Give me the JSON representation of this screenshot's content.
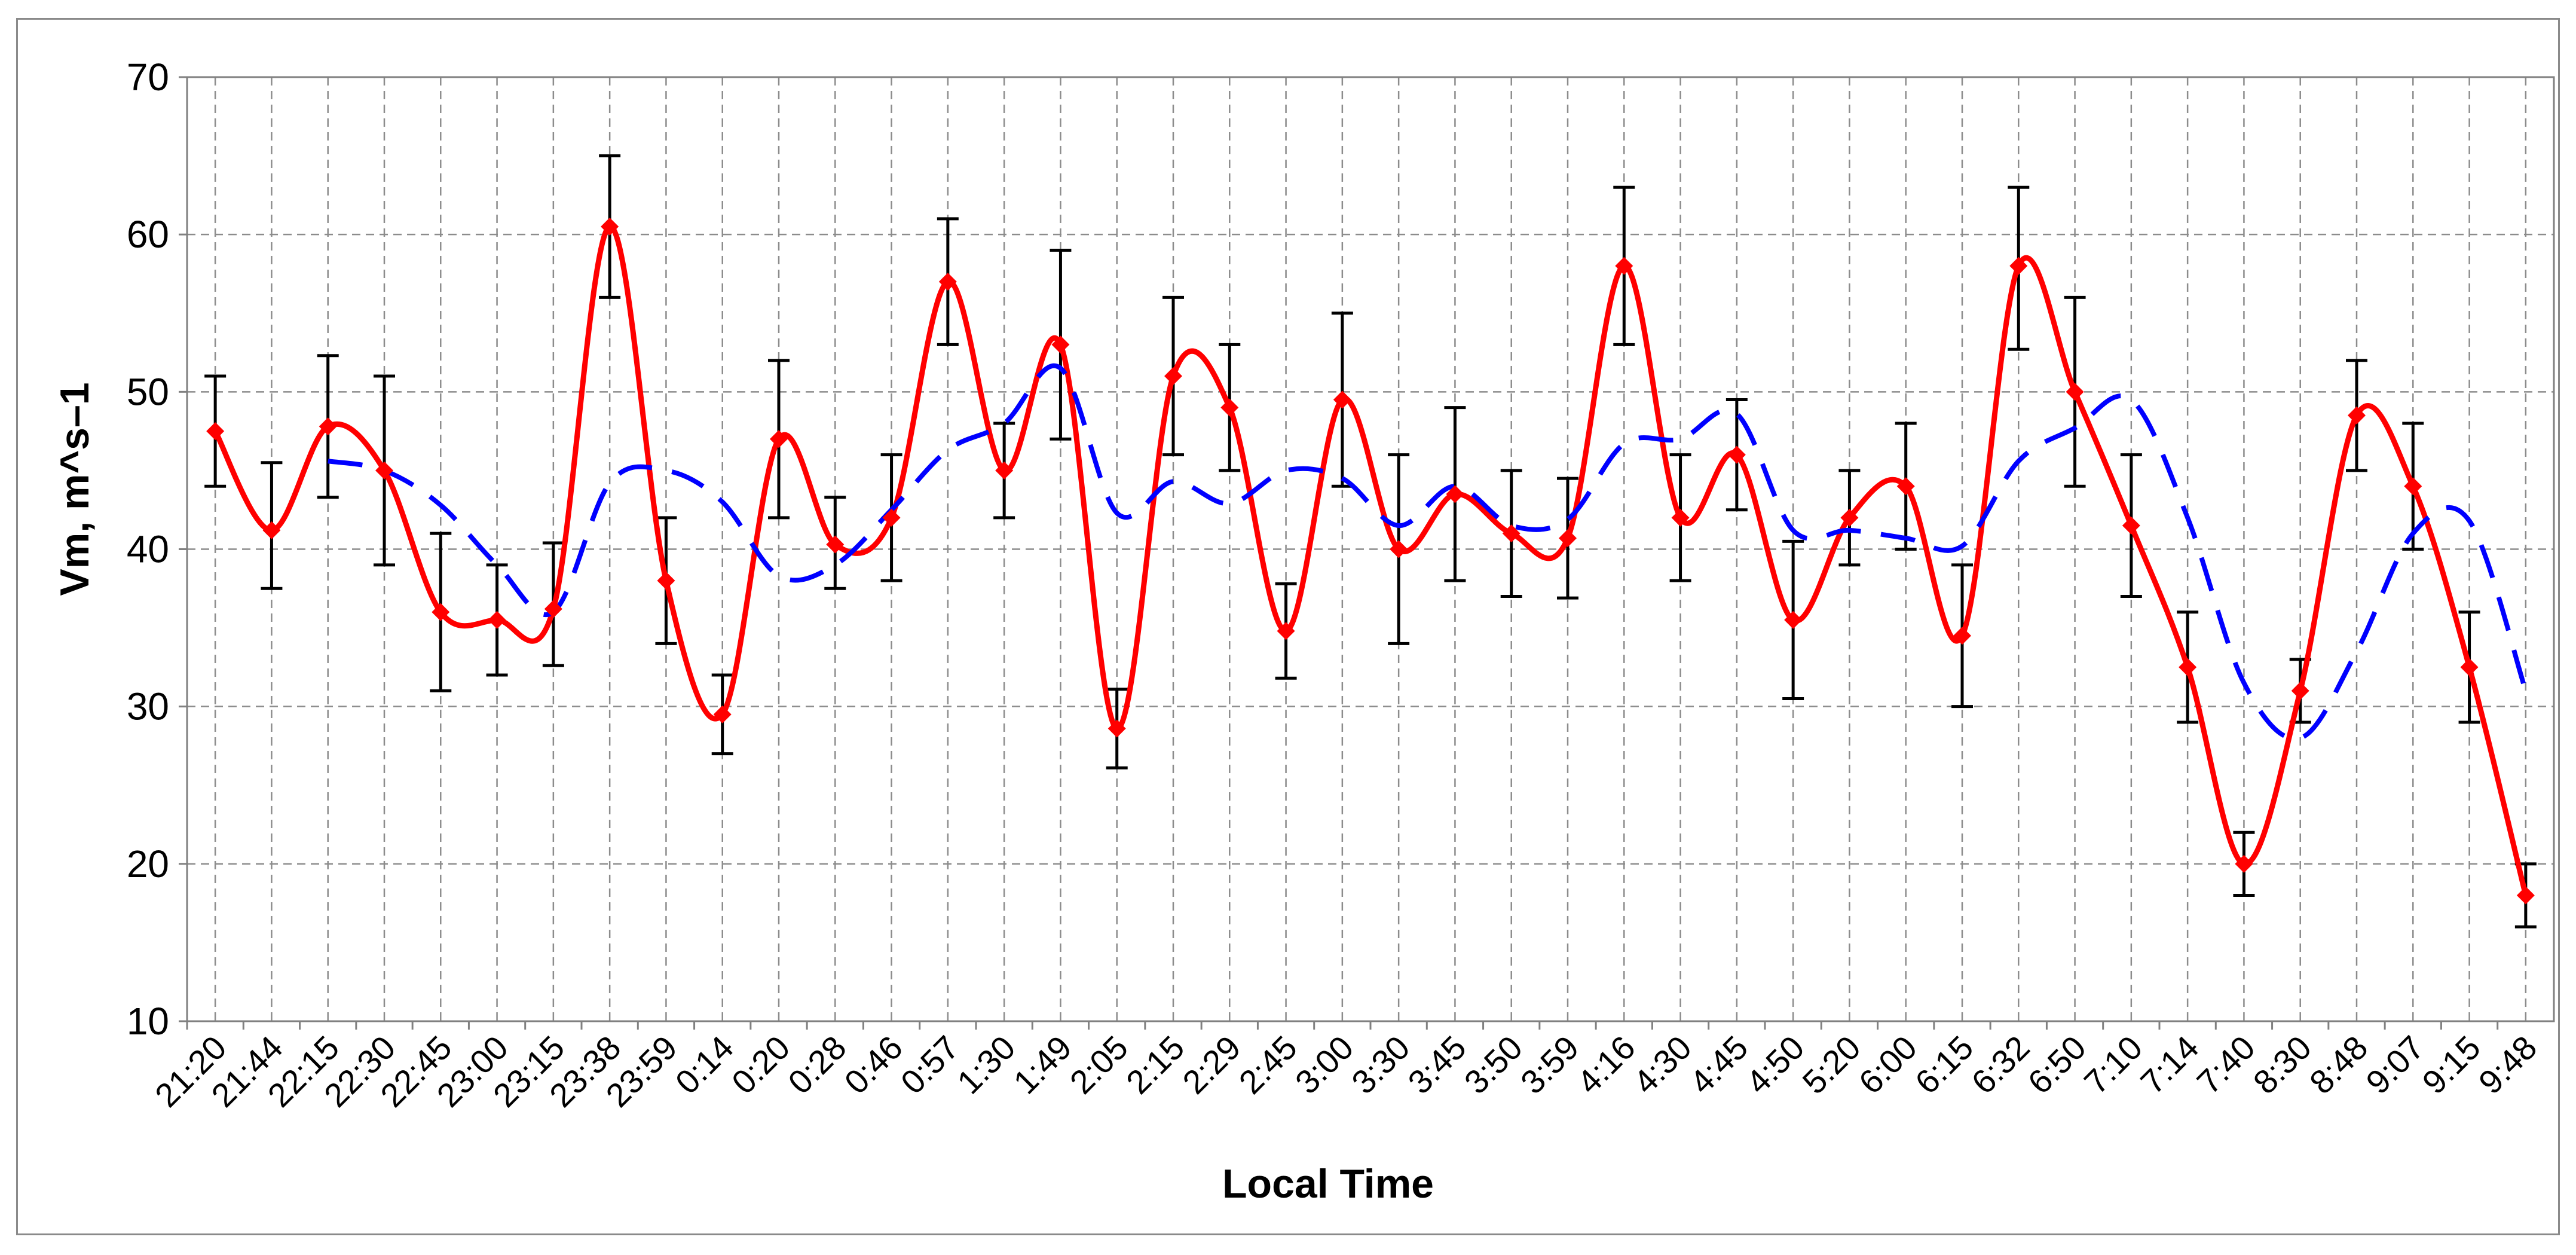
{
  "chart_data": {
    "type": "line",
    "title": "",
    "xlabel": "Local Time",
    "ylabel": "Vm, m^s–1",
    "ylim": [
      10,
      70
    ],
    "yticks": [
      10,
      20,
      30,
      40,
      50,
      60,
      70
    ],
    "grid": true,
    "legend": "none",
    "categories": [
      "21:20",
      "21:44",
      "22:15",
      "22:30",
      "22:45",
      "23:00",
      "23:15",
      "23:38",
      "23:59",
      "0:14",
      "0:20",
      "0:28",
      "0:46",
      "0:57",
      "1:30",
      "1:49",
      "2:05",
      "2:15",
      "2:29",
      "2:45",
      "3:00",
      "3:30",
      "3:45",
      "3:50",
      "3:59",
      "4:16",
      "4:30",
      "4:45",
      "4:50",
      "5:20",
      "6:00",
      "6:15",
      "6:32",
      "6:50",
      "7:10",
      "7:14",
      "7:40",
      "8:30",
      "8:48",
      "9:07",
      "9:15",
      "9:48"
    ],
    "series": [
      {
        "style": "solid",
        "color": "#ff0000",
        "marker": "diamond",
        "values": [
          47.5,
          41.2,
          47.8,
          45,
          36,
          35.5,
          36.2,
          60.5,
          38,
          29.5,
          47,
          40.3,
          42,
          57,
          45,
          53,
          28.6,
          51,
          49,
          34.8,
          49.5,
          40,
          43.5,
          41,
          40.7,
          58,
          42,
          46,
          35.5,
          42,
          44,
          34.5,
          58,
          50,
          41.5,
          32.5,
          20,
          31,
          48.5,
          44,
          32.5,
          18
        ],
        "error_high": [
          51,
          45.5,
          52.3,
          51,
          41,
          39,
          40.4,
          65,
          42,
          32,
          52,
          43.3,
          46,
          61,
          48,
          59,
          31.1,
          56,
          53,
          37.8,
          55,
          46,
          49,
          45,
          44.5,
          63,
          46,
          49.5,
          40.5,
          45,
          48,
          39,
          63,
          56,
          46,
          36,
          22,
          33,
          52,
          48,
          36,
          20
        ],
        "error_low": [
          44,
          37.5,
          43.3,
          39,
          31,
          32,
          32.6,
          56,
          34,
          27,
          42,
          37.5,
          38,
          53,
          42,
          47,
          26.1,
          46,
          45,
          31.8,
          44,
          34,
          38,
          37,
          36.9,
          53,
          38,
          42.5,
          30.5,
          39,
          40,
          30,
          52.7,
          44,
          37,
          29,
          18,
          29,
          45,
          40,
          29,
          16
        ]
      },
      {
        "style": "dashed",
        "color": "#0000ff",
        "marker": "none",
        "values": [
          null,
          null,
          45.6,
          45,
          42.8,
          39,
          36,
          44.2,
          45,
          43,
          38.3,
          39,
          42.5,
          46.3,
          48,
          51.5,
          42.3,
          44.3,
          42.9,
          45,
          44.5,
          41.5,
          44,
          41.5,
          41.9,
          46.7,
          47,
          48.6,
          41.2,
          41.2,
          40.7,
          40.2,
          45.6,
          47.7,
          49.5,
          42,
          31.5,
          28,
          33.5,
          41,
          41.8,
          31
        ]
      }
    ]
  }
}
